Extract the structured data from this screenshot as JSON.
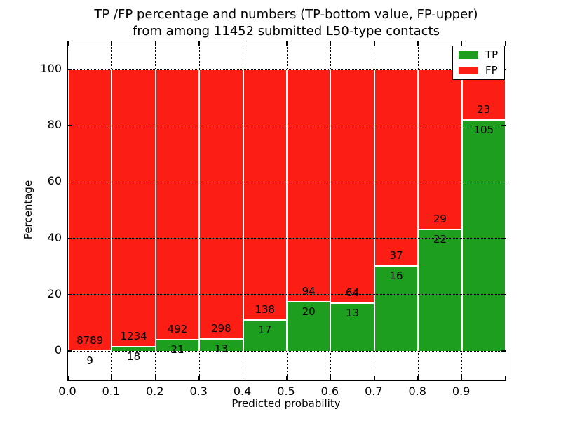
{
  "title": {
    "line1": "TP /FP percentage and numbers (TP-bottom value, FP-upper)",
    "line2": "from among 11452 submitted L50-type contacts"
  },
  "axes": {
    "xlabel": "Predicted probability",
    "ylabel": "Percentage",
    "x_tick_labels": [
      "0.0",
      "0.1",
      "0.2",
      "0.3",
      "0.4",
      "0.5",
      "0.6",
      "0.7",
      "0.8",
      "0.9"
    ],
    "y_tick_labels": [
      "0",
      "20",
      "40",
      "60",
      "80",
      "100"
    ],
    "y_tick_values": [
      0,
      20,
      40,
      60,
      80,
      100
    ]
  },
  "legend": {
    "items": [
      {
        "label": "TP",
        "color": "#1e9e1e"
      },
      {
        "label": "FP",
        "color": "#fc1e14"
      }
    ]
  },
  "chart_data": {
    "type": "bar",
    "stacked": true,
    "title": "TP /FP percentage and numbers (TP-bottom value, FP-upper) from among 11452 submitted L50-type contacts",
    "xlabel": "Predicted probability",
    "ylabel": "Percentage",
    "categories": [
      "0.0-0.1",
      "0.1-0.2",
      "0.2-0.3",
      "0.3-0.4",
      "0.4-0.5",
      "0.5-0.6",
      "0.6-0.7",
      "0.7-0.8",
      "0.8-0.9",
      "0.9-1.0"
    ],
    "bin_starts": [
      0.0,
      0.1,
      0.2,
      0.3,
      0.4,
      0.5,
      0.6,
      0.7,
      0.8,
      0.9
    ],
    "bin_width": 0.1,
    "series": [
      {
        "name": "TP",
        "position": "bottom",
        "color": "#1e9e1e",
        "counts": [
          9,
          18,
          21,
          13,
          17,
          20,
          13,
          16,
          22,
          105
        ]
      },
      {
        "name": "FP",
        "position": "top",
        "color": "#fc1e14",
        "counts": [
          8789,
          1234,
          492,
          298,
          138,
          94,
          64,
          37,
          29,
          23
        ]
      }
    ],
    "tp_percent_of_bin": [
      0.1,
      1.44,
      4.09,
      4.18,
      10.97,
      17.54,
      16.88,
      30.19,
      43.14,
      82.03
    ],
    "bar_unit": "percent of bin total (TP bottom segment, FP upper segment, stacked to 100%)",
    "total_submitted": 11452,
    "xlim": [
      0.0,
      1.0
    ],
    "ylim": [
      -10.5,
      110.5
    ],
    "grid": "dotted",
    "legend_position": "upper right"
  }
}
